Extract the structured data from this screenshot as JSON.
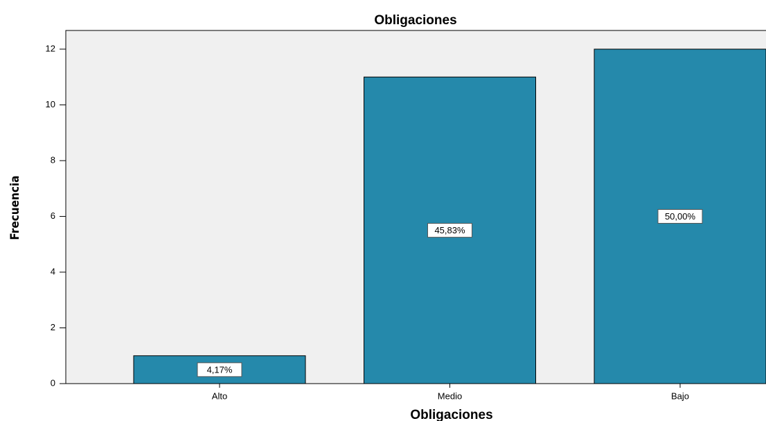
{
  "chart_data": {
    "type": "bar",
    "title": "Obligaciones",
    "x_label": "Obligaciones",
    "y_label": "Frecuencia",
    "categories": [
      "Alto",
      "Medio",
      "Bajo"
    ],
    "values": [
      1,
      11,
      12
    ],
    "color": "#2589ab",
    "percent_labels": [
      {
        "value": 4.17,
        "label": "4,17%"
      },
      {
        "value": 45.83,
        "label": "45,83%"
      },
      {
        "value": 50.0,
        "label": "50,00%"
      }
    ],
    "ylim": [
      0,
      12.67
    ],
    "yticks": [
      0,
      2,
      4,
      6,
      8,
      10,
      12
    ]
  }
}
